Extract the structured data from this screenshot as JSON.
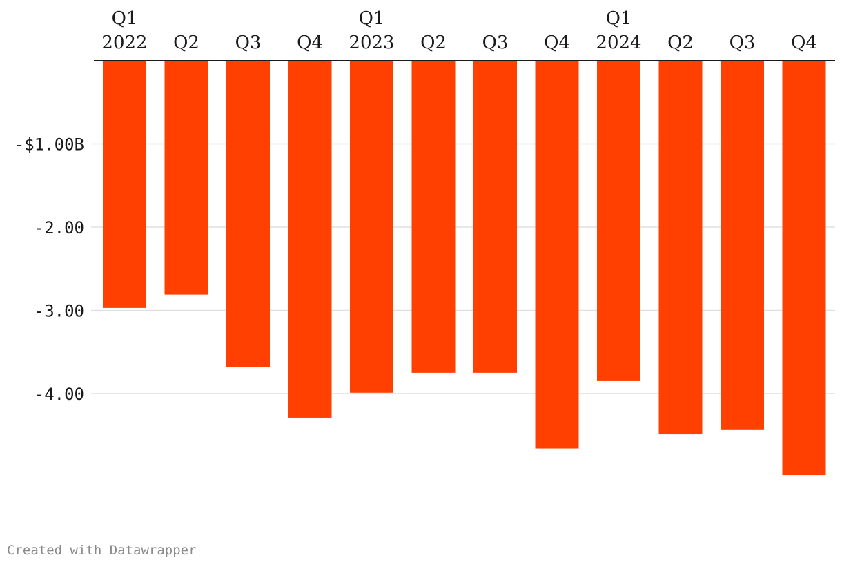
{
  "chart_data": {
    "type": "bar",
    "orientation": "vertical",
    "categories": [
      {
        "quarter": "Q1",
        "year": "2022"
      },
      {
        "quarter": "Q2",
        "year": ""
      },
      {
        "quarter": "Q3",
        "year": ""
      },
      {
        "quarter": "Q4",
        "year": ""
      },
      {
        "quarter": "Q1",
        "year": "2023"
      },
      {
        "quarter": "Q2",
        "year": ""
      },
      {
        "quarter": "Q3",
        "year": ""
      },
      {
        "quarter": "Q4",
        "year": ""
      },
      {
        "quarter": "Q1",
        "year": "2024"
      },
      {
        "quarter": "Q2",
        "year": ""
      },
      {
        "quarter": "Q3",
        "year": ""
      },
      {
        "quarter": "Q4",
        "year": ""
      }
    ],
    "values": [
      -2.97,
      -2.81,
      -3.68,
      -4.29,
      -3.99,
      -3.75,
      -3.75,
      -4.66,
      -3.85,
      -4.49,
      -4.43,
      -4.98
    ],
    "unit": "billion USD",
    "ylim": [
      -5.3,
      0
    ],
    "y_ticks": [
      {
        "value": -1,
        "label": "-$1.00B"
      },
      {
        "value": -2,
        "label": "-2.00"
      },
      {
        "value": -3,
        "label": "-3.00"
      },
      {
        "value": -4,
        "label": "-4.00"
      }
    ],
    "category_axis_position": "top",
    "grid": true,
    "title": "",
    "xlabel": "",
    "ylabel": ""
  },
  "colors": {
    "bar": "#ff4000",
    "grid": "#e0e0e0",
    "axis": "#1a1a1a"
  },
  "footer": {
    "credit": "Created with Datawrapper"
  }
}
